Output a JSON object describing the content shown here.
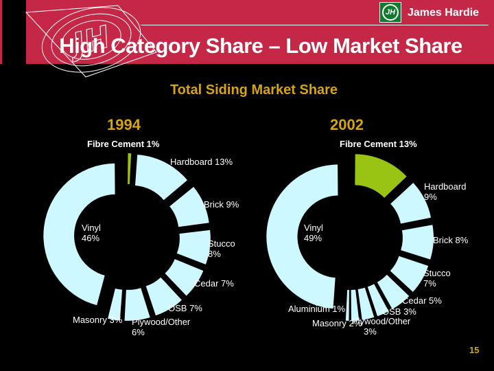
{
  "header": {
    "brand": "James Hardie",
    "logo_monogram": "JH",
    "title": "High Category Share – Low Market Share"
  },
  "subtitle": "Total Siding Market Share",
  "page_number": "15",
  "colors": {
    "band_red": "#C52847",
    "gold": "#D6A511",
    "wedge_cyan": "#CDF8FF",
    "highlight_green": "#99C414",
    "logo_green": "#0E7A2B",
    "background": "#000000",
    "text_white": "#FFFFFF"
  },
  "chart_data": [
    {
      "type": "pie",
      "variant": "exploded-doughnut",
      "title": "1994",
      "start_angle_deg": 0,
      "direction": "clockwise",
      "slices": [
        {
          "name": "Fibre Cement",
          "pct": 1,
          "highlight": true,
          "label": [
            "Fibre Cement 1%"
          ]
        },
        {
          "name": "Hardboard",
          "pct": 13,
          "highlight": false,
          "label": [
            "Hardboard 13%"
          ]
        },
        {
          "name": "Brick",
          "pct": 9,
          "highlight": false,
          "label": [
            "Brick 9%"
          ]
        },
        {
          "name": "Stucco",
          "pct": 8,
          "highlight": false,
          "label": [
            "Stucco",
            "8%"
          ]
        },
        {
          "name": "Cedar",
          "pct": 7,
          "highlight": false,
          "label": [
            "Cedar 7%"
          ]
        },
        {
          "name": "OSB",
          "pct": 7,
          "highlight": false,
          "label": [
            "OSB 7%"
          ]
        },
        {
          "name": "Plywood/Other",
          "pct": 6,
          "highlight": false,
          "label": [
            "Plywood/Other",
            "6%"
          ]
        },
        {
          "name": "Masonry",
          "pct": 3,
          "highlight": false,
          "label": [
            "Masonry 3%"
          ]
        },
        {
          "name": "Vinyl",
          "pct": 46,
          "highlight": false,
          "label": [
            "Vinyl",
            "46%"
          ]
        }
      ]
    },
    {
      "type": "pie",
      "variant": "exploded-doughnut",
      "title": "2002",
      "start_angle_deg": 0,
      "direction": "clockwise",
      "slices": [
        {
          "name": "Fibre Cement",
          "pct": 13,
          "highlight": true,
          "label": [
            "Fibre Cement 13%"
          ]
        },
        {
          "name": "Hardboard",
          "pct": 9,
          "highlight": false,
          "label": [
            "Hardboard",
            "9%"
          ]
        },
        {
          "name": "Brick",
          "pct": 8,
          "highlight": false,
          "label": [
            "Brick 8%"
          ]
        },
        {
          "name": "Stucco",
          "pct": 7,
          "highlight": false,
          "label": [
            "Stucco",
            "7%"
          ]
        },
        {
          "name": "Cedar",
          "pct": 5,
          "highlight": false,
          "label": [
            "Cedar 5%"
          ]
        },
        {
          "name": "OSB",
          "pct": 3,
          "highlight": false,
          "label": [
            "OSB 3%"
          ]
        },
        {
          "name": "Plywood/Other",
          "pct": 3,
          "highlight": false,
          "label": [
            "Plywood/Other",
            "3%"
          ]
        },
        {
          "name": "Masonry",
          "pct": 2,
          "highlight": false,
          "label": [
            "Masonry 2%"
          ]
        },
        {
          "name": "Aluminium",
          "pct": 1,
          "highlight": false,
          "label": [
            "Aluminium 1%"
          ]
        },
        {
          "name": "Vinyl",
          "pct": 49,
          "highlight": false,
          "label": [
            "Vinyl",
            "49%"
          ]
        }
      ]
    }
  ]
}
